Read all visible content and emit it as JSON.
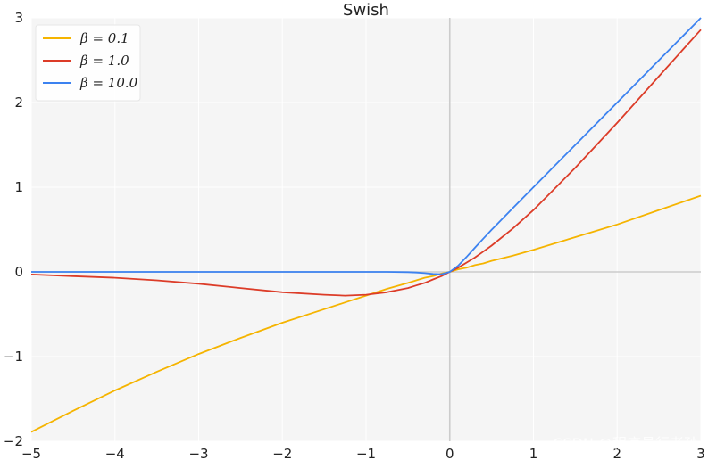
{
  "chart_data": {
    "type": "line",
    "title": "Swish",
    "xlabel": "",
    "ylabel": "",
    "xlim": [
      -5,
      3
    ],
    "ylim": [
      -2,
      3
    ],
    "xticks": [
      -5,
      -4,
      -3,
      -2,
      -1,
      0,
      1,
      2,
      3
    ],
    "yticks": [
      -2,
      -1,
      0,
      1,
      2,
      3
    ],
    "xtick_labels": [
      "−5",
      "−4",
      "−3",
      "−2",
      "−1",
      "0",
      "1",
      "2",
      "3"
    ],
    "ytick_labels": [
      "−2",
      "−1",
      "0",
      "1",
      "2",
      "3"
    ],
    "grid": true,
    "legend_position": "top-left",
    "x": [
      -5,
      -4.5,
      -4,
      -3.5,
      -3,
      -2.5,
      -2,
      -1.5,
      -1.25,
      -1,
      -0.75,
      -0.5,
      -0.4,
      -0.3,
      -0.2,
      -0.1,
      0,
      0.1,
      0.2,
      0.3,
      0.4,
      0.5,
      0.75,
      1,
      1.5,
      2,
      2.5,
      3
    ],
    "series": [
      {
        "name": "β = 0.1",
        "color": "#f5b400",
        "values": [
          -1.89,
          -1.64,
          -1.4,
          -1.18,
          -0.97,
          -0.78,
          -0.6,
          -0.44,
          -0.36,
          -0.28,
          -0.2,
          -0.13,
          -0.1,
          -0.07,
          -0.05,
          -0.02,
          0,
          0.03,
          0.05,
          0.08,
          0.1,
          0.13,
          0.19,
          0.26,
          0.41,
          0.56,
          0.73,
          0.9
        ]
      },
      {
        "name": "β = 1.0",
        "color": "#dc3c28",
        "values": [
          -0.03,
          -0.05,
          -0.07,
          -0.1,
          -0.14,
          -0.19,
          -0.24,
          -0.27,
          -0.28,
          -0.27,
          -0.24,
          -0.19,
          -0.16,
          -0.13,
          -0.09,
          -0.05,
          0,
          0.05,
          0.11,
          0.17,
          0.24,
          0.31,
          0.51,
          0.73,
          1.23,
          1.76,
          2.31,
          2.86
        ]
      },
      {
        "name": "β = 10.0",
        "color": "#3c82f0",
        "values": [
          0,
          0,
          0,
          0,
          0,
          0,
          0,
          0,
          0,
          0,
          0,
          -0.003,
          -0.007,
          -0.015,
          -0.024,
          -0.027,
          0,
          0.073,
          0.176,
          0.285,
          0.393,
          0.497,
          0.75,
          1,
          1.5,
          2,
          2.5,
          3
        ]
      }
    ]
  },
  "watermark": "CSDN @程序员行者孙",
  "colors": {
    "plot_background": "#f5f5f5",
    "grid": "#ffffff",
    "axis_line": "#cccccc"
  }
}
